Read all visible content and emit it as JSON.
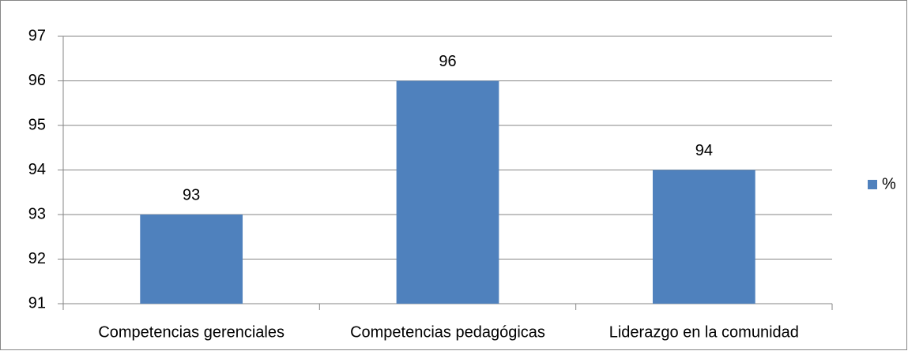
{
  "chart_data": {
    "type": "bar",
    "categories": [
      "Competencias gerenciales",
      "Competencias pedagógicas",
      "Liderazgo en la comunidad"
    ],
    "series": [
      {
        "name": "%",
        "color": "#4f81bd",
        "values": [
          93,
          96,
          94
        ]
      }
    ],
    "ylim": [
      91,
      97
    ],
    "yticks": [
      91,
      92,
      93,
      94,
      95,
      96,
      97
    ],
    "grid": true,
    "legend": "right"
  }
}
